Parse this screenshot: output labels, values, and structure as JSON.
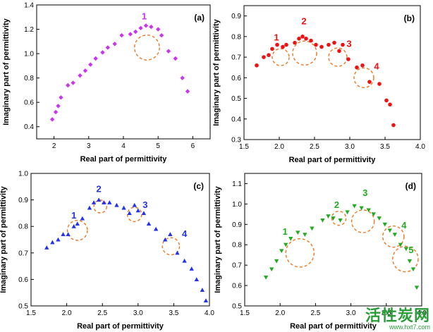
{
  "chart_data": [
    {
      "type": "scatter",
      "tag": "(a)",
      "xlabel": "Real part of permittivity",
      "ylabel": "Imaginary part of permittivity",
      "xlim": [
        1.5,
        6.5
      ],
      "ylim": [
        0.3,
        1.4
      ],
      "xticks": [
        "2",
        "3",
        "4",
        "5",
        "6"
      ],
      "yticks": [
        "0.4",
        "0.6",
        "0.8",
        "1.0",
        "1.2",
        "1.4"
      ],
      "marker": "diamond",
      "color": "#cc33ee",
      "points": [
        [
          1.95,
          0.46
        ],
        [
          2.05,
          0.52
        ],
        [
          2.12,
          0.57
        ],
        [
          2.2,
          0.64
        ],
        [
          2.4,
          0.74
        ],
        [
          2.55,
          0.76
        ],
        [
          2.75,
          0.82
        ],
        [
          2.9,
          0.86
        ],
        [
          3.05,
          0.91
        ],
        [
          3.2,
          0.96
        ],
        [
          3.4,
          1.01
        ],
        [
          3.55,
          1.05
        ],
        [
          3.75,
          1.08
        ],
        [
          3.95,
          1.15
        ],
        [
          4.2,
          1.16
        ],
        [
          4.35,
          1.18
        ],
        [
          4.5,
          1.21
        ],
        [
          4.65,
          1.23
        ],
        [
          4.8,
          1.22
        ],
        [
          5.0,
          1.2
        ],
        [
          5.1,
          1.15
        ],
        [
          5.3,
          1.02
        ],
        [
          5.5,
          0.96
        ],
        [
          5.7,
          0.8
        ],
        [
          5.85,
          0.69
        ]
      ],
      "annotations": [
        {
          "label": "1",
          "x": 4.6,
          "y": 1.28,
          "cx": 4.68,
          "cy": 1.05,
          "r": 0.36
        }
      ],
      "annotation_color": "#cc33ee"
    },
    {
      "type": "scatter",
      "tag": "(b)",
      "xlabel": "Real part of permittivity",
      "ylabel": "Imaginary part of permittivity",
      "xlim": [
        1.5,
        4.0
      ],
      "ylim": [
        0.3,
        0.95
      ],
      "xticks": [
        "1.5",
        "2.0",
        "2.5",
        "3.0",
        "3.5",
        "4.0"
      ],
      "yticks": [
        "0.3",
        "0.4",
        "0.5",
        "0.6",
        "0.7",
        "0.8",
        "0.9"
      ],
      "marker": "circle",
      "color": "#ee1111",
      "points": [
        [
          1.68,
          0.66
        ],
        [
          1.78,
          0.7
        ],
        [
          1.85,
          0.71
        ],
        [
          1.9,
          0.74
        ],
        [
          1.97,
          0.76
        ],
        [
          2.05,
          0.75
        ],
        [
          2.1,
          0.76
        ],
        [
          2.22,
          0.77
        ],
        [
          2.28,
          0.79
        ],
        [
          2.33,
          0.8
        ],
        [
          2.38,
          0.79
        ],
        [
          2.45,
          0.78
        ],
        [
          2.52,
          0.76
        ],
        [
          2.6,
          0.75
        ],
        [
          2.7,
          0.76
        ],
        [
          2.78,
          0.77
        ],
        [
          2.85,
          0.73
        ],
        [
          2.9,
          0.76
        ],
        [
          2.98,
          0.69
        ],
        [
          3.1,
          0.65
        ],
        [
          3.18,
          0.66
        ],
        [
          3.28,
          0.58
        ],
        [
          3.42,
          0.57
        ],
        [
          3.52,
          0.49
        ],
        [
          3.57,
          0.47
        ],
        [
          3.62,
          0.37
        ]
      ],
      "annotations": [
        {
          "label": "1",
          "x": 1.96,
          "y": 0.78,
          "cx": 2.02,
          "cy": 0.7,
          "r": 0.12
        },
        {
          "label": "2",
          "x": 2.35,
          "y": 0.86,
          "cx": 2.36,
          "cy": 0.72,
          "r": 0.17
        },
        {
          "label": "3",
          "x": 2.99,
          "y": 0.75,
          "cx": 2.83,
          "cy": 0.7,
          "r": 0.13
        },
        {
          "label": "4",
          "x": 3.38,
          "y": 0.64,
          "cx": 3.2,
          "cy": 0.6,
          "r": 0.14
        }
      ],
      "annotation_color": "#ee1111"
    },
    {
      "type": "scatter",
      "tag": "(c)",
      "xlabel": "Real part of permittivity",
      "ylabel": "Imaginary part of permittivity",
      "xlim": [
        1.5,
        4.0
      ],
      "ylim": [
        0.5,
        1.0
      ],
      "xticks": [
        "1.5",
        "2.0",
        "2.5",
        "3.0",
        "3.5",
        "4.0"
      ],
      "yticks": [
        "0.5",
        "0.6",
        "0.7",
        "0.8",
        "0.9",
        "1.0"
      ],
      "marker": "triangle-up",
      "color": "#2233ee",
      "points": [
        [
          1.72,
          0.72
        ],
        [
          1.8,
          0.74
        ],
        [
          1.88,
          0.75
        ],
        [
          1.95,
          0.77
        ],
        [
          2.02,
          0.77
        ],
        [
          2.1,
          0.8
        ],
        [
          2.15,
          0.81
        ],
        [
          2.22,
          0.83
        ],
        [
          2.32,
          0.87
        ],
        [
          2.38,
          0.89
        ],
        [
          2.45,
          0.9
        ],
        [
          2.52,
          0.89
        ],
        [
          2.6,
          0.89
        ],
        [
          2.7,
          0.88
        ],
        [
          2.8,
          0.87
        ],
        [
          2.88,
          0.85
        ],
        [
          2.95,
          0.88
        ],
        [
          3.0,
          0.86
        ],
        [
          3.08,
          0.85
        ],
        [
          3.15,
          0.81
        ],
        [
          3.25,
          0.79
        ],
        [
          3.38,
          0.75
        ],
        [
          3.45,
          0.77
        ],
        [
          3.55,
          0.7
        ],
        [
          3.65,
          0.67
        ],
        [
          3.75,
          0.64
        ],
        [
          3.82,
          0.6
        ],
        [
          3.9,
          0.56
        ],
        [
          3.95,
          0.52
        ]
      ],
      "annotations": [
        {
          "label": "1",
          "x": 2.1,
          "y": 0.83,
          "cx": 2.15,
          "cy": 0.785,
          "r": 0.14
        },
        {
          "label": "2",
          "x": 2.45,
          "y": 0.93,
          "cx": 2.47,
          "cy": 0.875,
          "r": 0.09
        },
        {
          "label": "3",
          "x": 3.1,
          "y": 0.87,
          "cx": 2.95,
          "cy": 0.845,
          "r": 0.1
        },
        {
          "label": "4",
          "x": 3.65,
          "y": 0.76,
          "cx": 3.46,
          "cy": 0.725,
          "r": 0.12
        }
      ],
      "annotation_color": "#2233ee"
    },
    {
      "type": "scatter",
      "tag": "(d)",
      "xlabel": "Real part of permittivity",
      "ylabel": "Imaginary part of permittivity",
      "xlim": [
        1.5,
        4.0
      ],
      "ylim": [
        0.5,
        1.15
      ],
      "xticks": [
        "1.5",
        "2.0",
        "2.5",
        "3.0",
        "3.5",
        "4.0"
      ],
      "yticks": [
        "0.5",
        "0.6",
        "0.7",
        "0.8",
        "0.9",
        "1.0",
        "1.1"
      ],
      "marker": "triangle-down",
      "color": "#22aa22",
      "points": [
        [
          1.8,
          0.64
        ],
        [
          1.88,
          0.68
        ],
        [
          1.95,
          0.72
        ],
        [
          2.02,
          0.77
        ],
        [
          2.08,
          0.8
        ],
        [
          2.15,
          0.83
        ],
        [
          2.25,
          0.86
        ],
        [
          2.35,
          0.85
        ],
        [
          2.45,
          0.88
        ],
        [
          2.6,
          0.92
        ],
        [
          2.68,
          0.94
        ],
        [
          2.75,
          0.93
        ],
        [
          2.85,
          0.92
        ],
        [
          2.95,
          0.96
        ],
        [
          3.05,
          0.99
        ],
        [
          3.15,
          0.98
        ],
        [
          3.25,
          0.97
        ],
        [
          3.32,
          0.95
        ],
        [
          3.4,
          0.93
        ],
        [
          3.48,
          0.9
        ],
        [
          3.55,
          0.87
        ],
        [
          3.62,
          0.85
        ],
        [
          3.7,
          0.8
        ],
        [
          3.78,
          0.78
        ],
        [
          3.83,
          0.72
        ],
        [
          3.88,
          0.68
        ],
        [
          3.93,
          0.59
        ]
      ],
      "annotations": [
        {
          "label": "1",
          "x": 2.07,
          "y": 0.85,
          "cx": 2.28,
          "cy": 0.76,
          "r": 0.2
        },
        {
          "label": "2",
          "x": 2.8,
          "y": 0.98,
          "cx": 2.83,
          "cy": 0.93,
          "r": 0.1
        },
        {
          "label": "3",
          "x": 3.2,
          "y": 1.04,
          "cx": 3.17,
          "cy": 0.915,
          "r": 0.16
        },
        {
          "label": "4",
          "x": 3.75,
          "y": 0.88,
          "cx": 3.6,
          "cy": 0.84,
          "r": 0.15
        },
        {
          "label": "5",
          "x": 3.85,
          "y": 0.76,
          "cx": 3.77,
          "cy": 0.73,
          "r": 0.18
        }
      ],
      "annotation_color": "#22aa22"
    }
  ],
  "circle_style": {
    "color": "#ee7722",
    "dash": "dashed"
  },
  "watermark": {
    "main": "活性炭网",
    "sub": "www.hxt7.com"
  }
}
